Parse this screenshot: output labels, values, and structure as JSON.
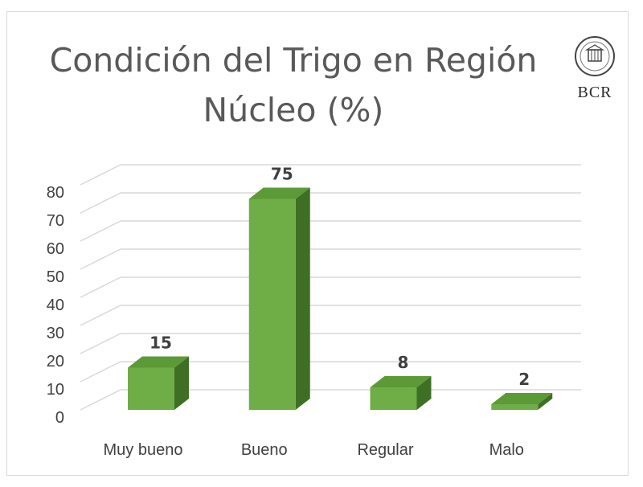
{
  "logo": {
    "text": "BCR",
    "icon": "bcr-seal-icon"
  },
  "chart_data": {
    "type": "bar",
    "title": "Condición del Trigo en Región Núcleo (%)",
    "xlabel": "",
    "ylabel": "",
    "categories": [
      "Muy bueno",
      "Bueno",
      "Regular",
      "Malo"
    ],
    "values": [
      15,
      75,
      8,
      2
    ],
    "ylim": [
      0,
      80
    ],
    "yticks": [
      0,
      10,
      20,
      30,
      40,
      50,
      60,
      70,
      80
    ],
    "grid": true,
    "legend": "none",
    "style": "3d-column",
    "colors": {
      "front": "#6fad47",
      "top": "#5c9a37",
      "side": "#3f6f25",
      "grid": "#d9d9d9"
    }
  }
}
